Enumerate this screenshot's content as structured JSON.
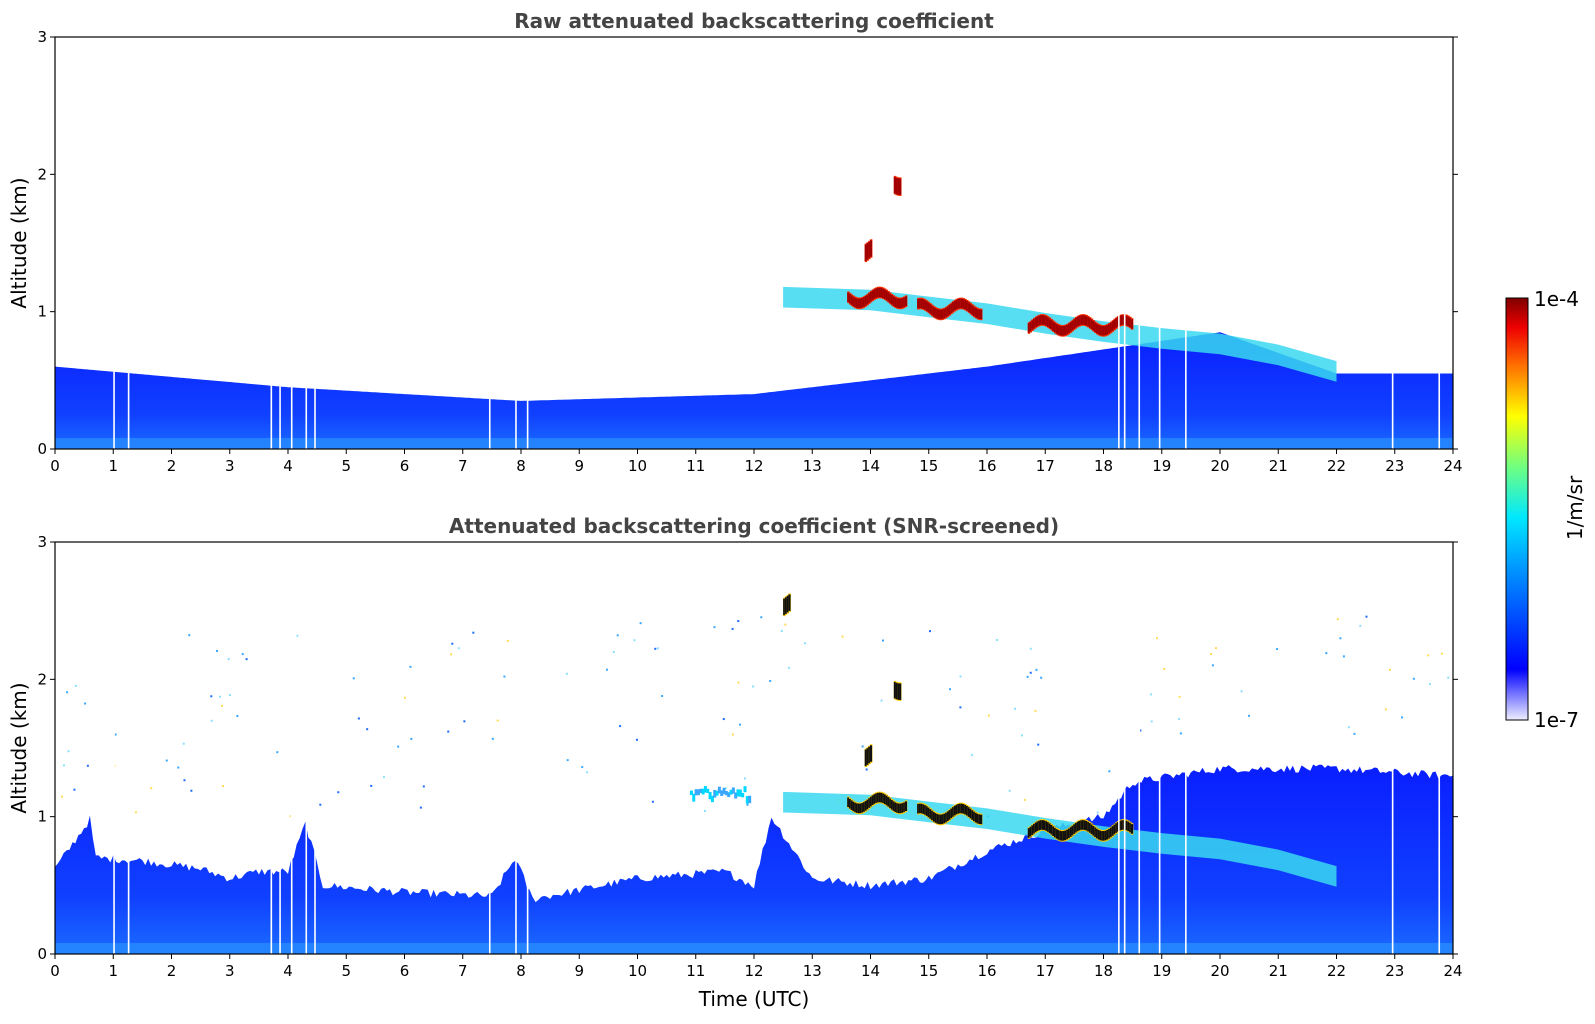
{
  "chart_data": [
    {
      "type": "heatmap",
      "title": "Raw attenuated backscattering coefficient",
      "xlabel": "",
      "ylabel": "Altitude (km)",
      "xlim": [
        0,
        24
      ],
      "ylim": [
        0,
        3
      ],
      "xticks": [
        "0",
        "1",
        "2",
        "3",
        "4",
        "5",
        "6",
        "7",
        "8",
        "9",
        "10",
        "11",
        "12",
        "13",
        "14",
        "15",
        "16",
        "17",
        "18",
        "19",
        "20",
        "21",
        "22",
        "23",
        "24"
      ],
      "yticks": [
        "0",
        "1",
        "2",
        "3"
      ],
      "boundary_layer_top_km": [
        [
          0,
          0.6
        ],
        [
          4,
          0.45
        ],
        [
          8,
          0.35
        ],
        [
          12,
          0.4
        ],
        [
          16,
          0.6
        ],
        [
          20,
          0.85
        ],
        [
          22,
          0.55
        ],
        [
          24,
          0.55
        ]
      ],
      "elevated_layer": [
        [
          12.5,
          1.12
        ],
        [
          14,
          1.1
        ],
        [
          15,
          1.05
        ],
        [
          16,
          1.0
        ],
        [
          17,
          0.93
        ],
        [
          18,
          0.87
        ],
        [
          19,
          0.82
        ],
        [
          20,
          0.78
        ],
        [
          21,
          0.7
        ],
        [
          22,
          0.58
        ]
      ],
      "strong_scattering_segments": [
        [
          13.6,
          14.6,
          1.1
        ],
        [
          14.8,
          15.9,
          1.02
        ],
        [
          16.7,
          18.5,
          0.9
        ],
        [
          13.9,
          14.0,
          1.45
        ],
        [
          14.4,
          14.5,
          1.95
        ]
      ],
      "noise_level_upper": "high",
      "gap_columns_h": [
        1.0,
        1.25,
        3.7,
        3.85,
        4.05,
        4.3,
        4.45,
        7.45,
        7.9,
        8.1,
        18.25,
        18.35,
        18.6,
        18.95,
        19.4,
        22.95,
        23.75
      ]
    },
    {
      "type": "heatmap",
      "title": "Attenuated backscattering coefficient (SNR-screened)",
      "xlabel": "Time (UTC)",
      "ylabel": "Altitude (km)",
      "xlim": [
        0,
        24
      ],
      "ylim": [
        0,
        3
      ],
      "xticks": [
        "0",
        "1",
        "2",
        "3",
        "4",
        "5",
        "6",
        "7",
        "8",
        "9",
        "10",
        "11",
        "12",
        "13",
        "14",
        "15",
        "16",
        "17",
        "18",
        "19",
        "20",
        "21",
        "22",
        "23",
        "24"
      ],
      "yticks": [
        "0",
        "1",
        "2",
        "3"
      ],
      "screened_top_km": [
        [
          0,
          0.62
        ],
        [
          0.6,
          0.98
        ],
        [
          0.7,
          0.7
        ],
        [
          1.5,
          0.68
        ],
        [
          2.5,
          0.62
        ],
        [
          3,
          0.55
        ],
        [
          3.5,
          0.6
        ],
        [
          4,
          0.6
        ],
        [
          4.3,
          0.95
        ],
        [
          4.6,
          0.5
        ],
        [
          6,
          0.45
        ],
        [
          7.5,
          0.42
        ],
        [
          7.9,
          0.7
        ],
        [
          8.2,
          0.4
        ],
        [
          10,
          0.55
        ],
        [
          11.5,
          0.6
        ],
        [
          12,
          0.5
        ],
        [
          12.3,
          1.0
        ],
        [
          13,
          0.55
        ],
        [
          14,
          0.5
        ],
        [
          15,
          0.55
        ],
        [
          16,
          0.75
        ],
        [
          17,
          0.9
        ],
        [
          18,
          1.0
        ],
        [
          18.5,
          1.25
        ],
        [
          20,
          1.35
        ],
        [
          22,
          1.35
        ],
        [
          23.8,
          1.3
        ]
      ],
      "elevated_layer": [
        [
          12.5,
          1.12
        ],
        [
          14,
          1.1
        ],
        [
          15,
          1.05
        ],
        [
          16,
          1.0
        ],
        [
          17,
          0.93
        ],
        [
          18,
          0.87
        ],
        [
          19,
          0.82
        ],
        [
          20,
          0.78
        ],
        [
          21,
          0.7
        ],
        [
          22,
          0.58
        ]
      ],
      "strong_scattering_segments": [
        [
          13.6,
          14.6,
          1.1
        ],
        [
          14.8,
          15.9,
          1.02
        ],
        [
          16.7,
          18.5,
          0.9
        ],
        [
          13.9,
          14.0,
          1.45
        ],
        [
          14.4,
          14.5,
          1.95
        ],
        [
          12.5,
          12.6,
          2.55
        ]
      ],
      "cloud_patch_11h": [
        [
          10.9,
          11.9,
          1.15
        ]
      ],
      "gap_columns_h": [
        1.0,
        1.25,
        3.7,
        3.85,
        4.05,
        4.3,
        4.45,
        7.45,
        7.9,
        8.1,
        18.25,
        18.35,
        18.6,
        18.95,
        19.4,
        22.95,
        23.75
      ]
    }
  ],
  "colorbar": {
    "label": "1/m/sr",
    "max_label": "1e-4",
    "min_label": "1e-7",
    "colors": [
      "#e6e6fa",
      "#0000ff",
      "#00a0ff",
      "#00ffff",
      "#7fff7f",
      "#ffff00",
      "#ff7f00",
      "#ff0000",
      "#7f0000"
    ]
  }
}
